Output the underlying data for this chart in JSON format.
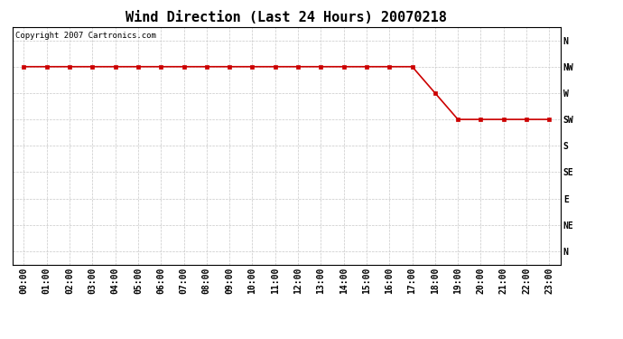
{
  "title": "Wind Direction (Last 24 Hours) 20070218",
  "copyright_text": "Copyright 2007 Cartronics.com",
  "line_color": "#cc0000",
  "marker": "s",
  "marker_size": 3,
  "marker_color": "#cc0000",
  "background_color": "#ffffff",
  "grid_color": "#c8c8c8",
  "x_labels": [
    "00:00",
    "01:00",
    "02:00",
    "03:00",
    "04:00",
    "05:00",
    "06:00",
    "07:00",
    "08:00",
    "09:00",
    "10:00",
    "11:00",
    "12:00",
    "13:00",
    "14:00",
    "15:00",
    "16:00",
    "17:00",
    "18:00",
    "19:00",
    "20:00",
    "21:00",
    "22:00",
    "23:00"
  ],
  "y_labels": [
    "N",
    "NW",
    "W",
    "SW",
    "S",
    "SE",
    "E",
    "NE",
    "N"
  ],
  "y_values": [
    8,
    7,
    6,
    5,
    4,
    3,
    2,
    1,
    0
  ],
  "wind_data_hours": [
    0,
    1,
    2,
    3,
    4,
    5,
    6,
    7,
    8,
    9,
    10,
    11,
    12,
    13,
    14,
    15,
    16,
    17,
    18,
    19,
    20,
    21,
    22,
    23
  ],
  "wind_data_dirs": [
    7,
    7,
    7,
    7,
    7,
    7,
    7,
    7,
    7,
    7,
    7,
    7,
    7,
    7,
    7,
    7,
    7,
    7,
    6,
    5,
    5,
    5,
    5,
    5
  ],
  "title_fontsize": 11,
  "tick_fontsize": 7,
  "copyright_fontsize": 6.5,
  "fig_width": 6.9,
  "fig_height": 3.75,
  "fig_dpi": 100
}
